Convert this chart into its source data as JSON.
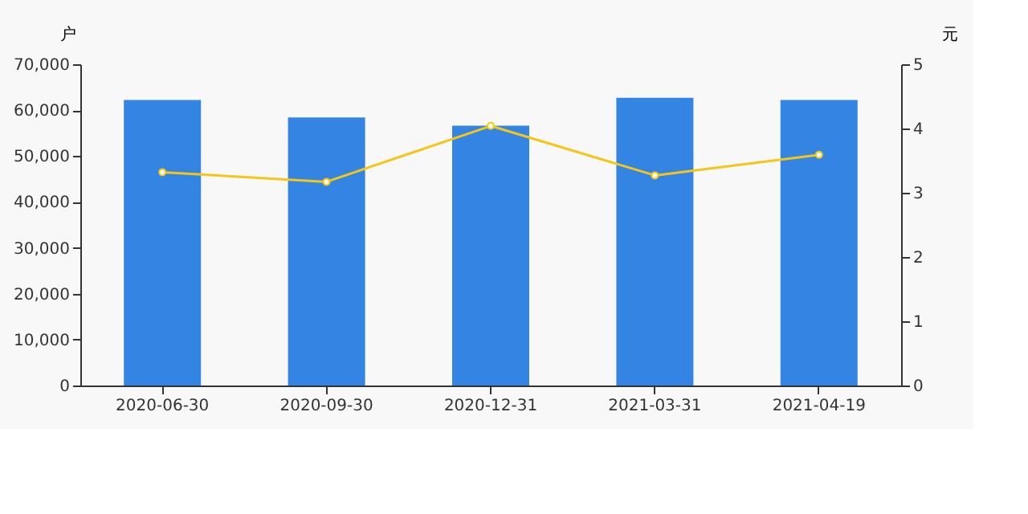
{
  "chart_data": {
    "type": "bar",
    "ylabel": "户",
    "y2label": "元",
    "categories": [
      "2020-06-30",
      "2020-09-30",
      "2020-12-31",
      "2021-03-31",
      "2021-04-19"
    ],
    "series": [
      {
        "color": "#3384e3",
        "values": [
          62200,
          58400,
          56600,
          62700,
          62200
        ]
      },
      {
        "type": "line",
        "color": "#f5c518",
        "axis": "y2",
        "marker": "circle",
        "values": [
          3.32,
          3.17,
          4.04,
          3.27,
          3.59
        ]
      }
    ],
    "ylim": [
      0,
      70000
    ],
    "yticks": [
      {
        "value": 0,
        "label": "0"
      },
      {
        "value": 10000,
        "label": "10,000"
      },
      {
        "value": 20000,
        "label": "20,000"
      },
      {
        "value": 30000,
        "label": "30,000"
      },
      {
        "value": 40000,
        "label": "40,000"
      },
      {
        "value": 50000,
        "label": "50,000"
      },
      {
        "value": 60000,
        "label": "60,000"
      },
      {
        "value": 70000,
        "label": "70,000"
      }
    ],
    "y2lim": [
      0,
      5
    ],
    "y2ticks": [
      0,
      1,
      2,
      3,
      4,
      5
    ],
    "grid": false
  }
}
